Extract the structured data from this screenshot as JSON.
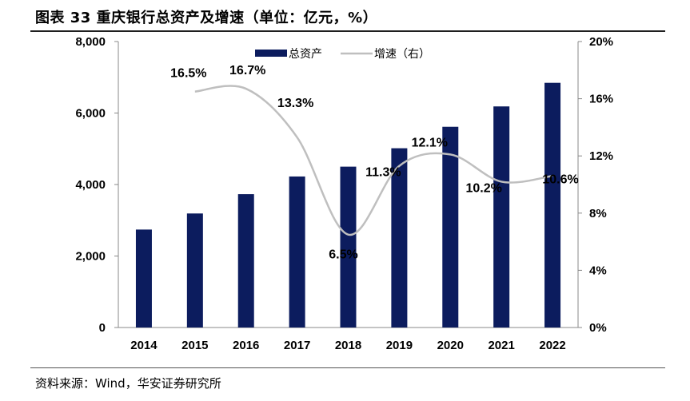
{
  "header": {
    "title": "图表 33 重庆银行总资产及增速（单位：亿元，%）"
  },
  "footer": {
    "source": "资料来源：Wind，华安证券研究所"
  },
  "chart_data": {
    "type": "bar",
    "categories": [
      "2014",
      "2015",
      "2016",
      "2017",
      "2018",
      "2019",
      "2020",
      "2021",
      "2022"
    ],
    "series": [
      {
        "name": "总资产",
        "type": "bar",
        "axis": "left",
        "color": "#0c1c5e",
        "values": [
          2740,
          3190,
          3730,
          4225,
          4500,
          5015,
          5615,
          6185,
          6845
        ]
      },
      {
        "name": "增速（右）",
        "type": "line",
        "axis": "right",
        "color": "#bfbfbf",
        "values": [
          null,
          16.5,
          16.7,
          13.3,
          6.5,
          11.3,
          12.1,
          10.2,
          10.6
        ],
        "data_labels": [
          "",
          "16.5%",
          "16.7%",
          "13.3%",
          "6.5%",
          "11.3%",
          "12.1%",
          "10.2%",
          "10.6%"
        ]
      }
    ],
    "y_left": {
      "ylim": [
        0,
        8000
      ],
      "ticks": [
        0,
        2000,
        4000,
        6000,
        8000
      ],
      "tick_labels": [
        "0",
        "2,000",
        "4,000",
        "6,000",
        "8,000"
      ]
    },
    "y_right": {
      "ylim": [
        0,
        20
      ],
      "ticks": [
        0,
        4,
        8,
        12,
        16,
        20
      ],
      "tick_labels": [
        "0%",
        "4%",
        "8%",
        "12%",
        "16%",
        "20%"
      ]
    },
    "legend": [
      "总资产",
      "增速（右）"
    ],
    "legend_position": "top-center",
    "grid": false
  }
}
